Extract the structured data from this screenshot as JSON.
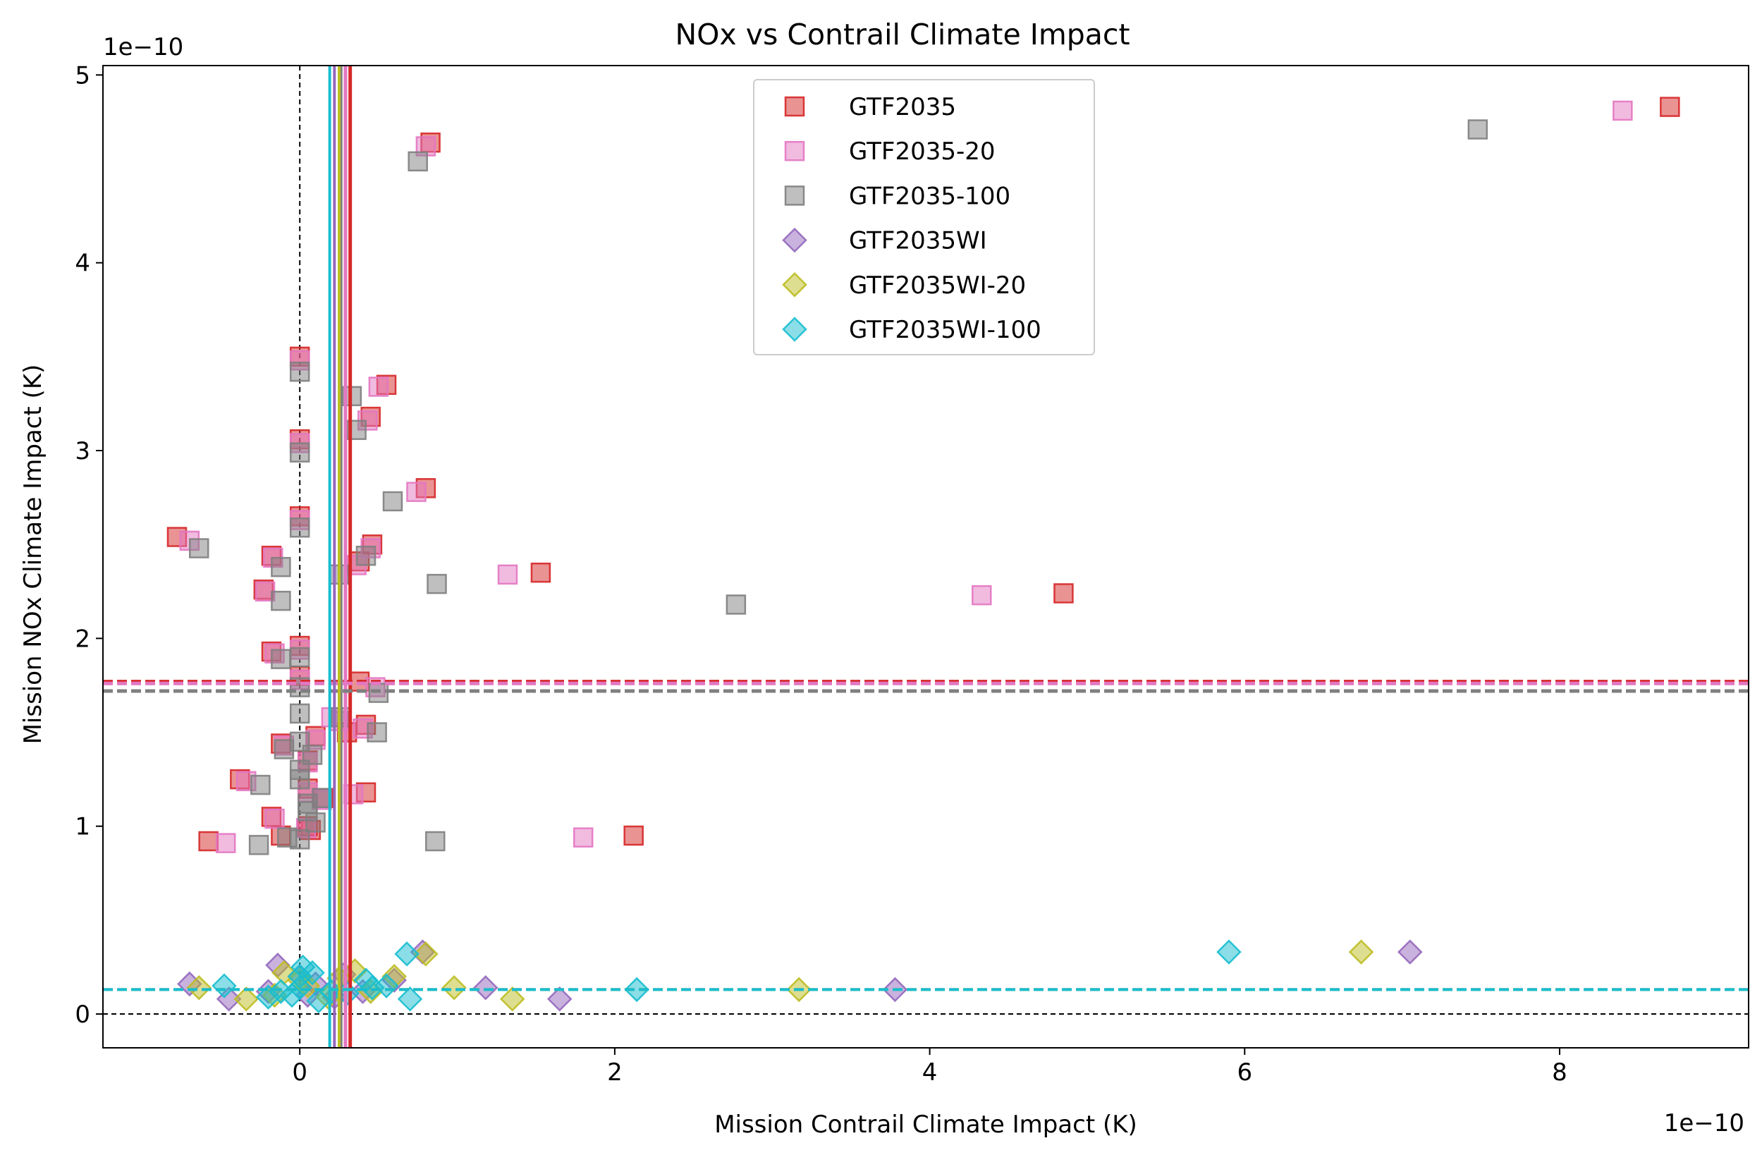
{
  "chart_data": {
    "type": "scatter",
    "title": "NOx vs Contrail Climate Impact",
    "xlabel": "Mission Contrail Climate Impact (K)",
    "ylabel": "Mission NOx Climate Impact (K)",
    "x_offset_text": "1e−10",
    "y_offset_text": "1e−10",
    "xlim": [
      -1.25,
      9.2
    ],
    "ylim": [
      -0.18,
      5.05
    ],
    "x_ticks": [
      0,
      2,
      4,
      6,
      8
    ],
    "x_tick_labels": [
      "0",
      "2",
      "4",
      "6",
      "8"
    ],
    "y_ticks": [
      0,
      1,
      2,
      3,
      4,
      5
    ],
    "y_tick_labels": [
      "0",
      "1",
      "2",
      "3",
      "4",
      "5"
    ],
    "grid": false,
    "legend_position": "upper center",
    "zero_lines": {
      "x": 0,
      "y": 0,
      "color": "#000000"
    },
    "series": [
      {
        "name": "GTF2035",
        "marker": "square",
        "color": "#d62728",
        "mean_x": 0.32,
        "mean_y": 1.77,
        "points": [
          [
            8.7,
            4.83
          ],
          [
            4.85,
            2.24
          ],
          [
            1.53,
            2.35
          ],
          [
            2.12,
            0.95
          ],
          [
            0.83,
            4.64
          ],
          [
            0.55,
            3.35
          ],
          [
            0.45,
            3.18
          ],
          [
            0.8,
            2.8
          ],
          [
            0.0,
            3.5
          ],
          [
            0.0,
            3.06
          ],
          [
            0.0,
            2.65
          ],
          [
            0.46,
            2.5
          ],
          [
            0.38,
            2.41
          ],
          [
            -0.78,
            2.54
          ],
          [
            -0.18,
            2.44
          ],
          [
            -0.23,
            2.26
          ],
          [
            -0.18,
            1.93
          ],
          [
            0.0,
            1.96
          ],
          [
            0.0,
            1.8
          ],
          [
            0.38,
            1.77
          ],
          [
            0.42,
            1.54
          ],
          [
            0.3,
            1.5
          ],
          [
            0.1,
            1.48
          ],
          [
            -0.12,
            1.44
          ],
          [
            -0.38,
            1.25
          ],
          [
            0.05,
            1.2
          ],
          [
            0.42,
            1.18
          ],
          [
            0.15,
            1.15
          ],
          [
            -0.18,
            1.05
          ],
          [
            0.05,
            1.0
          ],
          [
            0.07,
            0.98
          ],
          [
            -0.58,
            0.92
          ],
          [
            -0.12,
            0.95
          ],
          [
            0.05,
            1.35
          ]
        ]
      },
      {
        "name": "GTF2035-20",
        "marker": "square",
        "color": "#e377c2",
        "mean_x": 0.29,
        "mean_y": 1.76,
        "points": [
          [
            8.4,
            4.81
          ],
          [
            4.33,
            2.23
          ],
          [
            1.32,
            2.34
          ],
          [
            1.8,
            0.94
          ],
          [
            0.8,
            4.62
          ],
          [
            0.5,
            3.34
          ],
          [
            0.43,
            3.16
          ],
          [
            0.74,
            2.78
          ],
          [
            0.0,
            3.48
          ],
          [
            0.0,
            3.04
          ],
          [
            0.0,
            2.63
          ],
          [
            0.45,
            2.48
          ],
          [
            0.36,
            2.39
          ],
          [
            -0.7,
            2.52
          ],
          [
            -0.17,
            2.43
          ],
          [
            -0.22,
            2.25
          ],
          [
            -0.16,
            1.92
          ],
          [
            0.0,
            1.94
          ],
          [
            0.0,
            1.78
          ],
          [
            0.48,
            1.74
          ],
          [
            0.4,
            1.52
          ],
          [
            0.25,
            1.56
          ],
          [
            0.1,
            1.46
          ],
          [
            -0.1,
            1.43
          ],
          [
            -0.34,
            1.24
          ],
          [
            0.05,
            1.18
          ],
          [
            0.34,
            1.17
          ],
          [
            0.14,
            1.14
          ],
          [
            -0.16,
            1.04
          ],
          [
            0.04,
            0.99
          ],
          [
            -0.47,
            0.91
          ],
          [
            0.2,
            1.58
          ],
          [
            0.05,
            1.34
          ]
        ]
      },
      {
        "name": "GTF2035-100",
        "marker": "square",
        "color": "#7f7f7f",
        "mean_x": 0.26,
        "mean_y": 1.72,
        "points": [
          [
            7.48,
            4.71
          ],
          [
            2.77,
            2.18
          ],
          [
            0.87,
            2.29
          ],
          [
            0.86,
            0.92
          ],
          [
            0.75,
            4.54
          ],
          [
            0.33,
            3.29
          ],
          [
            0.36,
            3.11
          ],
          [
            0.59,
            2.73
          ],
          [
            0.0,
            3.42
          ],
          [
            0.0,
            2.99
          ],
          [
            0.0,
            2.59
          ],
          [
            0.42,
            2.44
          ],
          [
            0.25,
            2.34
          ],
          [
            -0.64,
            2.48
          ],
          [
            -0.12,
            2.38
          ],
          [
            -0.12,
            2.2
          ],
          [
            -0.12,
            1.89
          ],
          [
            0.0,
            1.9
          ],
          [
            0.0,
            1.74
          ],
          [
            0.5,
            1.71
          ],
          [
            0.49,
            1.5
          ],
          [
            0.26,
            1.58
          ],
          [
            0.08,
            1.38
          ],
          [
            -0.1,
            1.41
          ],
          [
            -0.25,
            1.22
          ],
          [
            0.05,
            1.12
          ],
          [
            0.05,
            1.08
          ],
          [
            -0.26,
            0.9
          ],
          [
            -0.08,
            0.94
          ],
          [
            0.0,
            0.93
          ],
          [
            0.0,
            1.25
          ],
          [
            0.0,
            1.45
          ],
          [
            0.0,
            1.6
          ],
          [
            0.0,
            1.3
          ],
          [
            0.1,
            1.02
          ],
          [
            0.14,
            1.15
          ]
        ]
      },
      {
        "name": "GTF2035WI",
        "marker": "diamond",
        "color": "#9467bd",
        "mean_x": 0.22,
        "mean_y": 0.13,
        "points": [
          [
            7.05,
            0.33
          ],
          [
            3.78,
            0.13
          ],
          [
            1.65,
            0.08
          ],
          [
            1.18,
            0.14
          ],
          [
            0.78,
            0.33
          ],
          [
            0.4,
            0.12
          ],
          [
            0.28,
            0.21
          ],
          [
            0.1,
            0.16
          ],
          [
            0.0,
            0.2
          ],
          [
            -0.14,
            0.26
          ],
          [
            -0.7,
            0.16
          ],
          [
            -0.45,
            0.08
          ],
          [
            -0.2,
            0.12
          ],
          [
            0.05,
            0.1
          ],
          [
            0.6,
            0.18
          ],
          [
            0.22,
            0.09
          ]
        ]
      },
      {
        "name": "GTF2035WI-20",
        "marker": "diamond",
        "color": "#bcbd22",
        "mean_x": 0.25,
        "mean_y": 0.13,
        "points": [
          [
            6.74,
            0.33
          ],
          [
            3.17,
            0.13
          ],
          [
            1.35,
            0.08
          ],
          [
            0.98,
            0.14
          ],
          [
            0.8,
            0.32
          ],
          [
            0.35,
            0.23
          ],
          [
            0.25,
            0.19
          ],
          [
            0.05,
            0.15
          ],
          [
            0.0,
            0.18
          ],
          [
            -0.1,
            0.22
          ],
          [
            -0.64,
            0.14
          ],
          [
            -0.34,
            0.08
          ],
          [
            -0.16,
            0.1
          ],
          [
            0.6,
            0.2
          ],
          [
            0.45,
            0.12
          ],
          [
            0.18,
            0.09
          ]
        ]
      },
      {
        "name": "GTF2035WI-100",
        "marker": "diamond",
        "color": "#17becf",
        "mean_x": 0.19,
        "mean_y": 0.13,
        "points": [
          [
            5.9,
            0.33
          ],
          [
            2.14,
            0.13
          ],
          [
            0.7,
            0.08
          ],
          [
            0.68,
            0.32
          ],
          [
            0.46,
            0.14
          ],
          [
            0.42,
            0.18
          ],
          [
            0.2,
            0.12
          ],
          [
            0.08,
            0.22
          ],
          [
            0.0,
            0.2
          ],
          [
            0.0,
            0.14
          ],
          [
            -0.05,
            0.1
          ],
          [
            -0.2,
            0.09
          ],
          [
            -0.48,
            0.15
          ],
          [
            0.12,
            0.07
          ],
          [
            0.55,
            0.15
          ],
          [
            0.3,
            0.11
          ],
          [
            0.02,
            0.25
          ],
          [
            -0.12,
            0.12
          ]
        ]
      }
    ]
  }
}
